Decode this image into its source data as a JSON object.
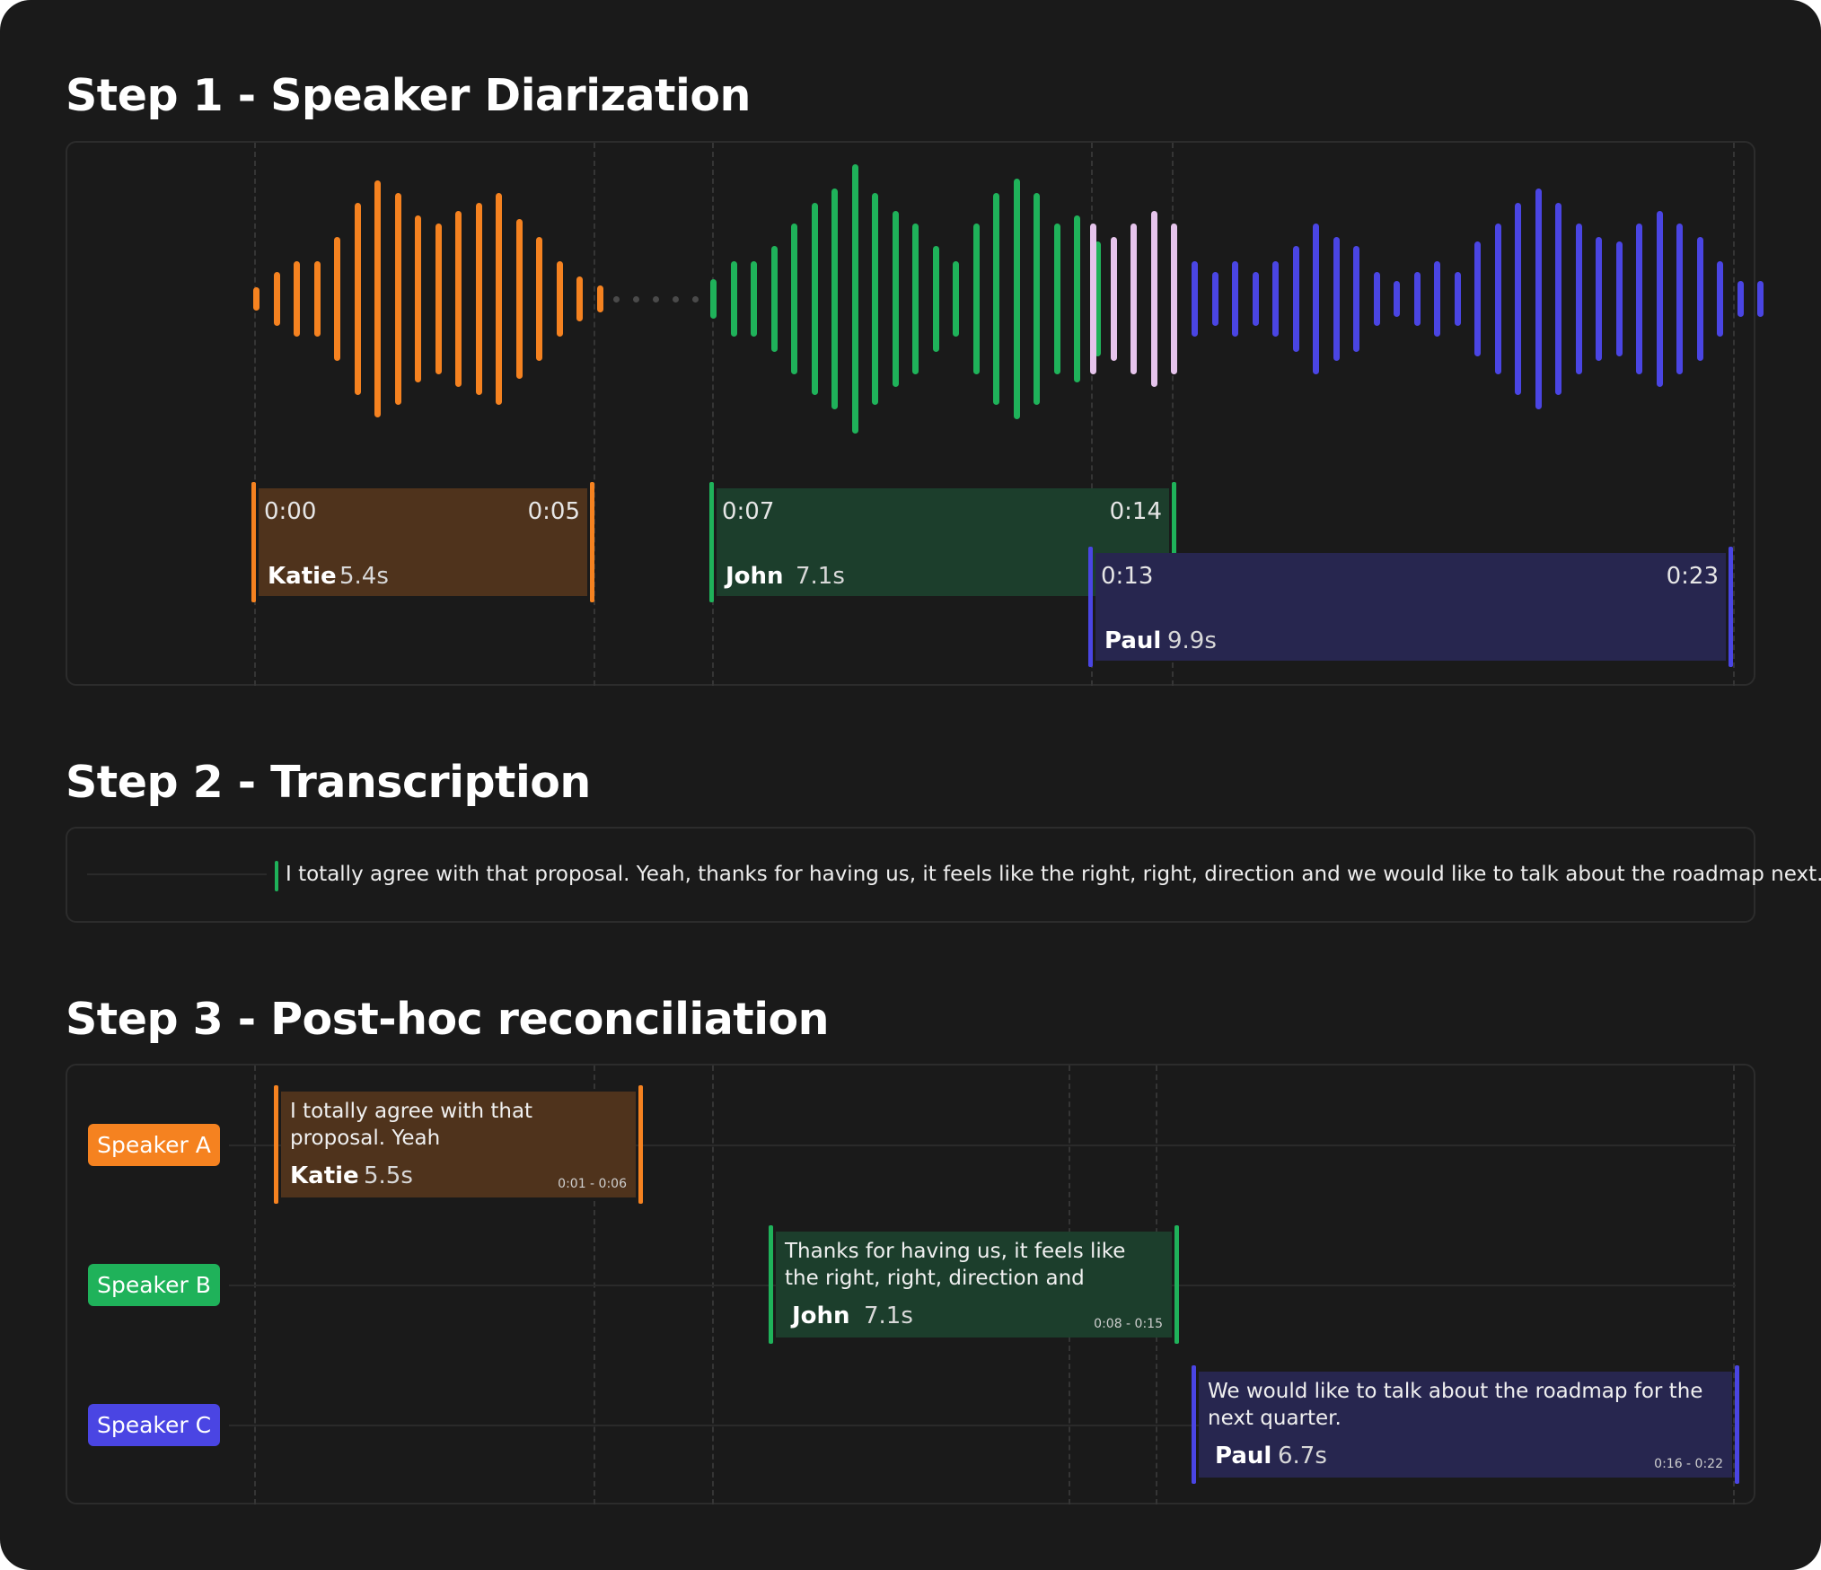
{
  "colors": {
    "katie": "#f58220",
    "katie_fill": "#4f331c",
    "john": "#1fb25a",
    "john_fill": "#1c3e2c",
    "paul": "#4a45e3",
    "paul_fill": "#27264f",
    "overlap": "#e6c4ec",
    "gap_dot": "#4a4a4a"
  },
  "step1": {
    "title": "Step 1 - Speaker Diarization",
    "segments": [
      {
        "name": "Katie",
        "duration": "5.4s",
        "start": "0:00",
        "end": "0:05"
      },
      {
        "name": "John",
        "duration": "7.1s",
        "start": "0:07",
        "end": "0:14"
      },
      {
        "name": "Paul",
        "duration": "9.9s",
        "start": "0:13",
        "end": "0:23"
      }
    ]
  },
  "step2": {
    "title": "Step 2 - Transcription",
    "transcript": "I totally agree with that proposal. Yeah, thanks for having us, it feels like the right, right, direction and we would like to talk about the roadmap next."
  },
  "step3": {
    "title": "Step 3 - Post-hoc reconciliation",
    "rows": [
      {
        "speaker_label": "Speaker A",
        "text": "I totally agree with that proposal. Yeah",
        "name": "Katie",
        "duration": "5.5s",
        "range": "0:01 - 0:06"
      },
      {
        "speaker_label": "Speaker B",
        "text": "Thanks for having us, it feels like the right, right, direction and",
        "name": "John",
        "duration": "7.1s",
        "range": "0:08 - 0:15"
      },
      {
        "speaker_label": "Speaker C",
        "text": "We would like to talk about the roadmap for the next quarter.",
        "name": "Paul",
        "duration": "6.7s",
        "range": "0:16 - 0:22"
      }
    ]
  }
}
